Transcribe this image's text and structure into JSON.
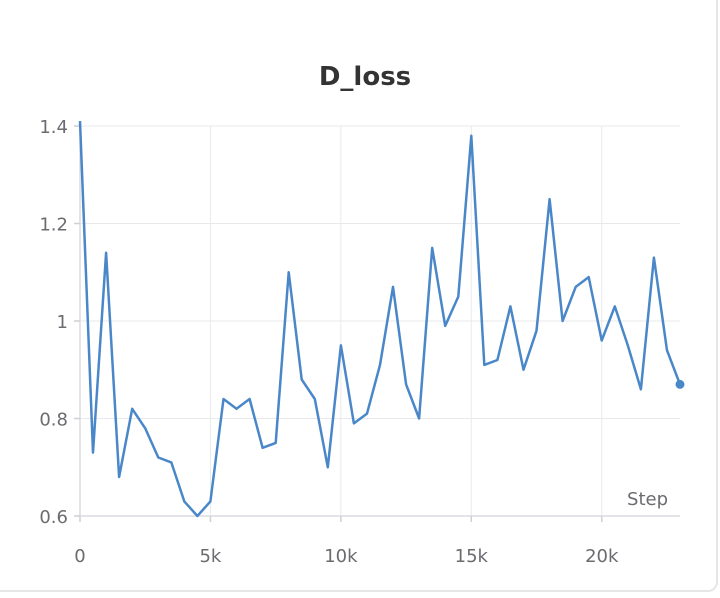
{
  "chart_data": {
    "type": "line",
    "title": "D_loss",
    "xlabel": "Step",
    "ylabel": "",
    "xlim": [
      0,
      23000
    ],
    "ylim": [
      0.6,
      1.4
    ],
    "x_ticks": [
      0,
      5000,
      10000,
      15000,
      20000
    ],
    "x_tick_labels": [
      "0",
      "5k",
      "10k",
      "15k",
      "20k"
    ],
    "y_ticks": [
      0.6,
      0.8,
      1.0,
      1.2,
      1.4
    ],
    "y_tick_labels": [
      "0.6",
      "0.8",
      "1",
      "1.2",
      "1.4"
    ],
    "grid": true,
    "series": [
      {
        "color": "#4a87c9",
        "x": [
          0,
          500,
          1000,
          1500,
          2000,
          2500,
          3000,
          3500,
          4000,
          4500,
          5000,
          5500,
          6000,
          6500,
          7000,
          7500,
          8000,
          8500,
          9000,
          9500,
          10000,
          10500,
          11000,
          11500,
          12000,
          12500,
          13000,
          13500,
          14000,
          14500,
          15000,
          15500,
          16000,
          16500,
          17000,
          17500,
          18000,
          18500,
          19000,
          19500,
          20000,
          20500,
          21000,
          21500,
          22000,
          22500,
          23000
        ],
        "y": [
          1.41,
          0.73,
          1.14,
          0.68,
          0.82,
          0.78,
          0.72,
          0.71,
          0.63,
          0.6,
          0.63,
          0.84,
          0.82,
          0.84,
          0.74,
          0.75,
          1.1,
          0.88,
          0.84,
          0.7,
          0.95,
          0.79,
          0.81,
          0.91,
          1.07,
          0.87,
          0.8,
          1.15,
          0.99,
          1.05,
          1.38,
          0.91,
          0.92,
          1.03,
          0.9,
          0.98,
          1.25,
          1.0,
          1.07,
          1.09,
          0.96,
          1.03,
          0.95,
          0.86,
          1.13,
          0.94,
          0.87
        ]
      }
    ]
  }
}
